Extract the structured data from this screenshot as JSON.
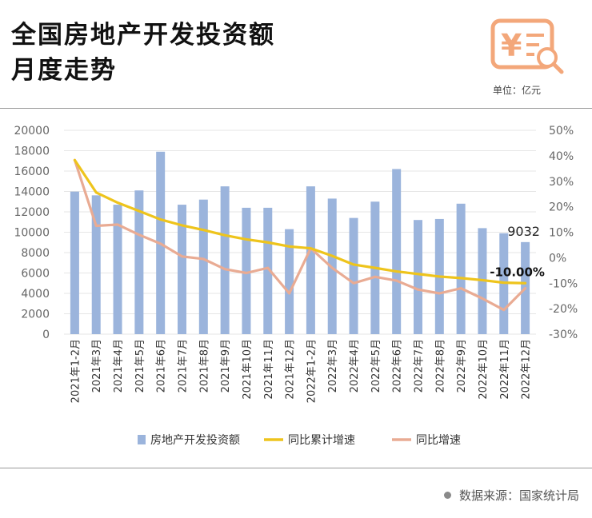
{
  "title_line1": "全国房地产开发投资额",
  "title_line2": "月度走势",
  "unit": "单位：亿元",
  "source": "数据来源：国家统计局",
  "logo_icon": "receipt-search-icon",
  "colors": {
    "bar": "#9bb4dc",
    "cum_line": "#eec41c",
    "yoy_line": "#e9ab93",
    "logo": "#f3a77a"
  },
  "chart_data": {
    "type": "bar",
    "categories": [
      "2021年1-2月",
      "2021年3月",
      "2021年4月",
      "2021年5月",
      "2021年6月",
      "2021年7月",
      "2021年8月",
      "2021年9月",
      "2021年10月",
      "2021年11月",
      "2021年12月",
      "2022年1-2月",
      "2022年3月",
      "2022年4月",
      "2022年5月",
      "2022年6月",
      "2022年7月",
      "2022年8月",
      "2022年9月",
      "2022年10月",
      "2022年11月",
      "2022年12月"
    ],
    "ylim_left": [
      0,
      20000
    ],
    "yticks_left": [
      "20000",
      "18000",
      "16000",
      "14000",
      "12000",
      "10000",
      "8000",
      "6000",
      "4000",
      "2000",
      "0"
    ],
    "ylim_right": [
      -30,
      50
    ],
    "yticks_right": [
      "50%",
      "40%",
      "30%",
      "20%",
      "10%",
      "0%",
      "-10%",
      "-20%",
      "-30%"
    ],
    "series": [
      {
        "name": "房地产开发投资额",
        "type": "bar",
        "values": [
          13986,
          13620,
          12700,
          14100,
          17900,
          12700,
          13200,
          14500,
          12400,
          12400,
          10300,
          14500,
          13300,
          11400,
          13000,
          16200,
          11200,
          11300,
          12800,
          10400,
          9900,
          9032
        ]
      },
      {
        "name": "同比累计增速",
        "type": "line",
        "axis": "right",
        "values": [
          38.3,
          25.6,
          21.6,
          18.3,
          15.0,
          12.7,
          10.9,
          8.8,
          7.2,
          6.0,
          4.4,
          3.7,
          0.7,
          -2.7,
          -4.0,
          -5.4,
          -6.4,
          -7.4,
          -8.0,
          -8.8,
          -9.8,
          -10.0
        ]
      },
      {
        "name": "同比增速",
        "type": "line",
        "axis": "right",
        "values": [
          38.3,
          12.5,
          13.0,
          9.0,
          5.5,
          0.5,
          -0.5,
          -4.5,
          -6.0,
          -4.0,
          -14.0,
          3.7,
          -4.0,
          -10.0,
          -7.5,
          -9.0,
          -12.5,
          -14.0,
          -12.0,
          -16.0,
          -20.5,
          -12.0
        ]
      }
    ],
    "annotations": [
      "9032",
      "-10.00%"
    ]
  }
}
